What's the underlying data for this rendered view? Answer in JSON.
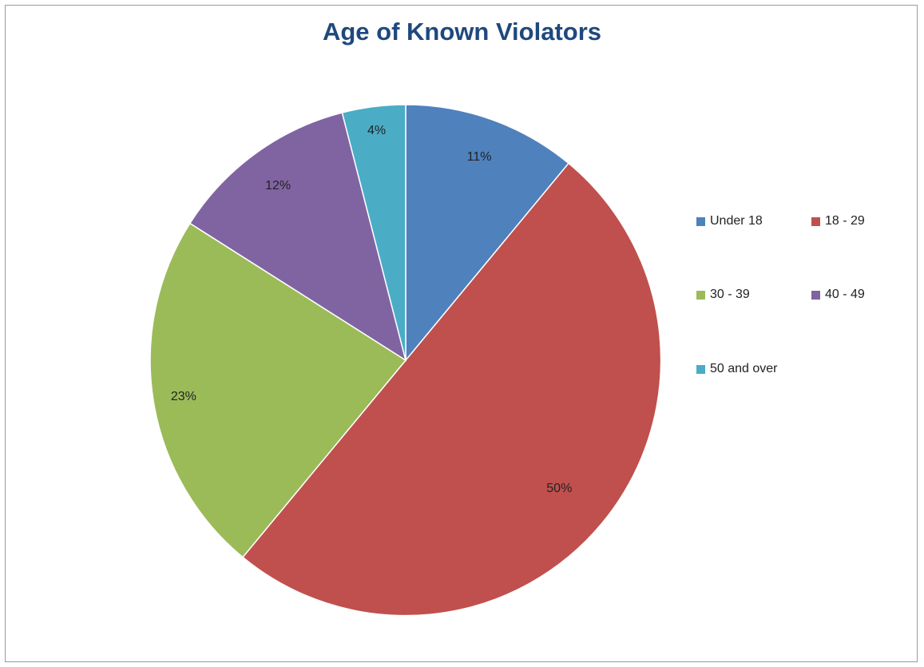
{
  "chart_data": {
    "type": "pie",
    "title": "Age of Known Violators",
    "categories": [
      "Under 18",
      "18 - 29",
      "30 - 39",
      "40 - 49",
      "50 and over"
    ],
    "values": [
      11,
      50,
      23,
      12,
      4
    ],
    "labels": [
      "11%",
      "50%",
      "23%",
      "12%",
      "4%"
    ],
    "colors": [
      "#4f81bd",
      "#c0504d",
      "#9bbb59",
      "#8064a2",
      "#4bacc6"
    ],
    "legend_position": "right",
    "start_angle_deg": 0,
    "direction": "clockwise"
  }
}
